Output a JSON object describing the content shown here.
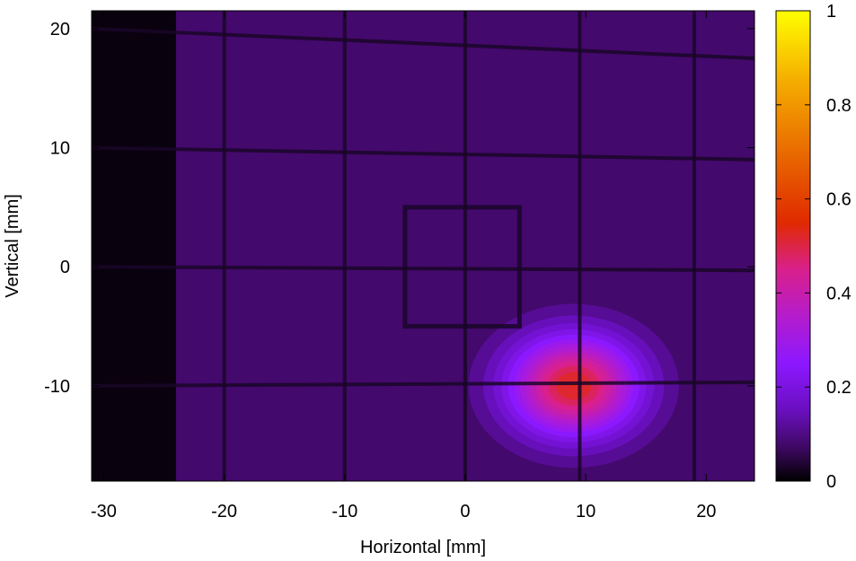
{
  "chart_data": {
    "type": "heatmap",
    "title": "",
    "xlabel": "Horizontal [mm]",
    "ylabel": "Vertical [mm]",
    "xlim": [
      -31,
      24
    ],
    "ylim": [
      -18,
      21.5
    ],
    "x_ticks": [
      -30,
      -20,
      -10,
      0,
      10,
      20
    ],
    "y_ticks": [
      20,
      10,
      0,
      -10
    ],
    "colorbar": {
      "range": [
        0,
        1
      ],
      "ticks": [
        0,
        0.2,
        0.4,
        0.6,
        0.8,
        1
      ],
      "colormap": "black-purple-violet-red-orange-yellow",
      "stops": [
        {
          "v": 0.0,
          "color": "#000000"
        },
        {
          "v": 0.07,
          "color": "#3d0860"
        },
        {
          "v": 0.15,
          "color": "#6a0fbf"
        },
        {
          "v": 0.25,
          "color": "#8c18ff"
        },
        {
          "v": 0.35,
          "color": "#b41ccc"
        },
        {
          "v": 0.45,
          "color": "#d9208c"
        },
        {
          "v": 0.55,
          "color": "#e02a00"
        },
        {
          "v": 0.7,
          "color": "#e96b00"
        },
        {
          "v": 0.85,
          "color": "#f5ac00"
        },
        {
          "v": 1.0,
          "color": "#ffff00"
        }
      ]
    },
    "background_intensity": 0.08,
    "dark_region": {
      "x_range": [
        -31,
        -24
      ],
      "intensity": 0.01
    },
    "grid_wires": {
      "vertical_x": [
        -20,
        -10,
        0,
        9.5,
        19
      ],
      "horizontal": [
        {
          "y_left": 20,
          "y_right": 17.5
        },
        {
          "y_left": 10,
          "y_right": 9
        },
        {
          "y_left": 0,
          "y_right": -0.3
        },
        {
          "y_left": -10,
          "y_right": -9.7
        }
      ]
    },
    "square_marker": {
      "x_range": [
        -5,
        4.5
      ],
      "y_range": [
        -5,
        5
      ]
    },
    "beam_spot": {
      "center": [
        9,
        -10
      ],
      "peak_intensity": 0.55,
      "sigma_x": 3.8,
      "sigma_y": 3.0
    }
  }
}
